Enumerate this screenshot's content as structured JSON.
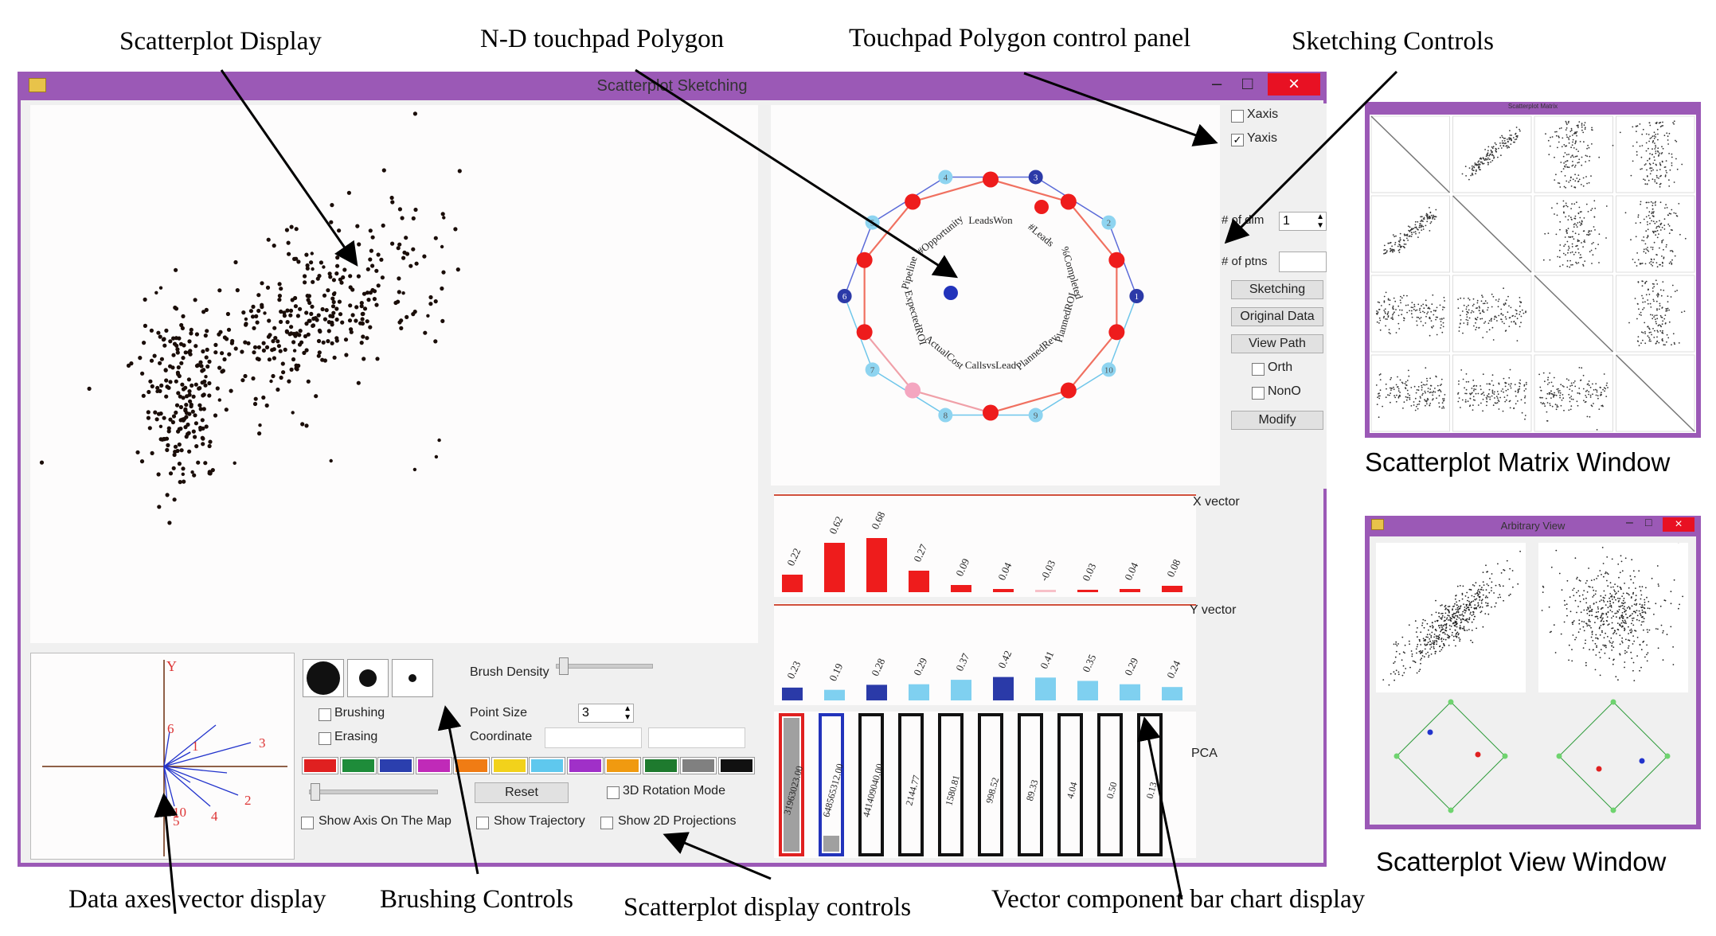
{
  "callouts": {
    "scatterplot_display": "Scatterplot Display",
    "nd_touchpad_polygon": "N-D touchpad Polygon",
    "touchpad_control_panel": "Touchpad Polygon control panel",
    "sketching_controls": "Sketching Controls",
    "scatterplot_matrix_window": "Scatterplot Matrix Window",
    "scatterplot_view_window": "Scatterplot View Window",
    "data_axes_vector_display": "Data axes vector display",
    "brushing_controls": "Brushing Controls",
    "scatterplot_display_controls": "Scatterplot display controls",
    "vector_component_bar_chart": "Vector component bar chart display"
  },
  "main_window": {
    "title": "Scatterplot Sketching",
    "close_glyph": "×",
    "min_glyph": "–",
    "max_glyph": "□"
  },
  "polygon": {
    "vertex_numbers": [
      "3",
      "4",
      "5",
      "6",
      "7",
      "8",
      "9",
      "10",
      "1",
      "2"
    ],
    "attributes": [
      "LeadsWon",
      "#Opportunity",
      "Pipeline",
      "ExpectedROI",
      "ActualCost",
      "CallsvsLead",
      "PlannedRev",
      "PlannedROI",
      "%Completed",
      "#Leads"
    ]
  },
  "sketch_controls": {
    "xaxis": "Xaxis",
    "yaxis": "Yaxis",
    "num_dim_label": "# of dim",
    "num_dim_value": "1",
    "num_pts_label": "# of ptns",
    "num_pts_value": "",
    "sketching": "Sketching",
    "original_data": "Original Data",
    "view_path": "View Path",
    "orth": "Orth",
    "nono": "NonO",
    "modify": "Modify"
  },
  "vectors": {
    "x_label": "X vector",
    "y_label": "Y vector",
    "pca_label": "PCA",
    "x_values": [
      0.22,
      0.62,
      0.68,
      0.27,
      0.09,
      0.04,
      -0.03,
      0.03,
      0.04,
      0.08
    ],
    "x_labels": [
      "0.22",
      "0.62",
      "0.68",
      "0.27",
      "0.09",
      "0.04",
      "-0.03",
      "0.03",
      "0.04",
      "0.08"
    ],
    "y_values": [
      0.23,
      0.19,
      0.28,
      0.29,
      0.37,
      0.42,
      0.41,
      0.35,
      0.29,
      0.24
    ],
    "y_labels": [
      "0.23",
      "0.19",
      "0.28",
      "0.29",
      "0.37",
      "0.42",
      "0.41",
      "0.35",
      "0.29",
      "0.24"
    ],
    "pca_labels": [
      "31963023.00",
      "648565312.00",
      "441409040.00",
      "2144.77",
      "1580.81",
      "998.52",
      "89.33",
      "4.04",
      "0.50",
      "0.13"
    ]
  },
  "brushing": {
    "brush_density": "Brush Density",
    "brushing": "Brushing",
    "erasing": "Erasing",
    "point_size_label": "Point Size",
    "point_size_value": "3",
    "coordinate": "Coordinate",
    "reset": "Reset",
    "rotation_mode": "3D Rotation Mode",
    "show_axis": "Show Axis On The Map",
    "show_trajectory": "Show Trajectory",
    "show_2d": "Show 2D Projections",
    "colors": [
      "#e02020",
      "#1e8c3a",
      "#2b3fae",
      "#c02ab8",
      "#f07c14",
      "#f2d21b",
      "#5fc8ee",
      "#a030c8",
      "#f09a10",
      "#1e7a2e",
      "#808080",
      "#111111"
    ]
  },
  "axes_display": {
    "y_label": "Y",
    "numbers": [
      "3",
      "2",
      "1",
      "6",
      "10",
      "4",
      "5"
    ]
  },
  "matrix_window": {
    "title": "Scatterplot Matrix"
  },
  "view_window": {
    "title": "Arbitrary View",
    "close_glyph": "×",
    "min_glyph": "–",
    "max_glyph": "□"
  }
}
